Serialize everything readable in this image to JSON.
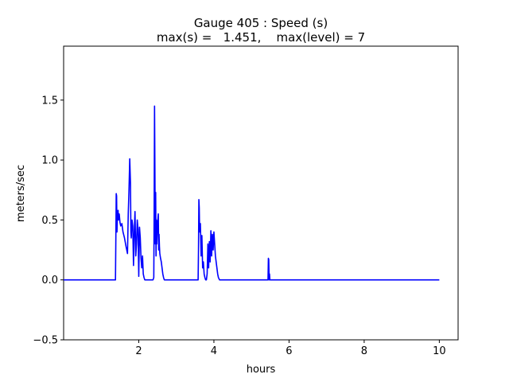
{
  "chart_data": {
    "type": "line",
    "title_line1": "Gauge 405 : Speed (s)",
    "title_line2": "max(s) =   1.451,    max(level) = 7",
    "xlabel": "hours",
    "ylabel": "meters/sec",
    "xlim": [
      0.0,
      10.5
    ],
    "ylim": [
      -0.5,
      1.95
    ],
    "xticks": [
      {
        "value": 2,
        "label": "2"
      },
      {
        "value": 4,
        "label": "4"
      },
      {
        "value": 6,
        "label": "6"
      },
      {
        "value": 8,
        "label": "8"
      },
      {
        "value": 10,
        "label": "10"
      }
    ],
    "yticks": [
      {
        "value": -0.5,
        "label": "−0.5"
      },
      {
        "value": 0.0,
        "label": "0.0"
      },
      {
        "value": 0.5,
        "label": "0.5"
      },
      {
        "value": 1.0,
        "label": "1.0"
      },
      {
        "value": 1.5,
        "label": "1.5"
      }
    ],
    "grid": false,
    "series": [
      {
        "color": "#0000ff",
        "x": [
          0.0,
          1.38,
          1.39,
          1.4,
          1.41,
          1.42,
          1.43,
          1.45,
          1.46,
          1.48,
          1.5,
          1.52,
          1.55,
          1.58,
          1.62,
          1.66,
          1.7,
          1.72,
          1.74,
          1.76,
          1.78,
          1.79,
          1.8,
          1.82,
          1.84,
          1.86,
          1.88,
          1.9,
          1.92,
          1.94,
          1.96,
          1.98,
          2.0,
          2.02,
          2.04,
          2.06,
          2.08,
          2.1,
          2.12,
          2.14,
          2.16,
          2.18,
          2.2,
          2.22,
          2.24,
          2.26,
          2.28,
          2.3,
          2.32,
          2.34,
          2.36,
          2.38,
          2.4,
          2.41,
          2.42,
          2.43,
          2.44,
          2.45,
          2.46,
          2.47,
          2.48,
          2.5,
          2.52,
          2.53,
          2.54,
          2.55,
          2.56,
          2.58,
          2.6,
          2.62,
          2.64,
          2.66,
          2.68,
          2.7,
          3.0,
          3.4,
          3.55,
          3.58,
          3.59,
          3.6,
          3.61,
          3.62,
          3.64,
          3.66,
          3.68,
          3.7,
          3.72,
          3.74,
          3.76,
          3.78,
          3.8,
          3.82,
          3.84,
          3.86,
          3.88,
          3.9,
          3.92,
          3.94,
          3.96,
          3.98,
          4.0,
          4.02,
          4.04,
          4.06,
          4.08,
          4.1,
          4.12,
          4.15,
          4.2,
          5.0,
          5.44,
          5.45,
          5.46,
          5.47,
          5.48,
          5.49,
          5.5,
          6.0,
          8.0,
          10.0
        ],
        "y": [
          0.0,
          0.0,
          0.34,
          0.72,
          0.7,
          0.4,
          0.52,
          0.58,
          0.5,
          0.55,
          0.48,
          0.45,
          0.47,
          0.4,
          0.35,
          0.28,
          0.22,
          0.55,
          0.75,
          1.01,
          0.8,
          0.4,
          0.35,
          0.5,
          0.45,
          0.12,
          0.4,
          0.57,
          0.2,
          0.3,
          0.5,
          0.42,
          0.03,
          0.44,
          0.35,
          0.18,
          0.1,
          0.2,
          0.05,
          0.02,
          0.0,
          0.0,
          0.0,
          0.0,
          0.0,
          0.0,
          0.0,
          0.0,
          0.0,
          0.0,
          0.0,
          0.0,
          0.02,
          0.6,
          1.45,
          0.9,
          0.3,
          0.73,
          0.2,
          0.5,
          0.3,
          0.47,
          0.55,
          0.25,
          0.38,
          0.28,
          0.22,
          0.18,
          0.15,
          0.1,
          0.05,
          0.02,
          0.0,
          0.0,
          0.0,
          0.0,
          0.0,
          0.0,
          0.25,
          0.67,
          0.6,
          0.4,
          0.47,
          0.2,
          0.37,
          0.1,
          0.15,
          0.05,
          0.02,
          0.0,
          0.0,
          0.05,
          0.3,
          0.1,
          0.32,
          0.15,
          0.41,
          0.2,
          0.38,
          0.25,
          0.4,
          0.3,
          0.2,
          0.15,
          0.1,
          0.05,
          0.02,
          0.0,
          0.0,
          0.0,
          0.0,
          0.18,
          0.17,
          0.0,
          0.05,
          0.0,
          0.0,
          0.0,
          0.0,
          0.0
        ]
      }
    ]
  }
}
